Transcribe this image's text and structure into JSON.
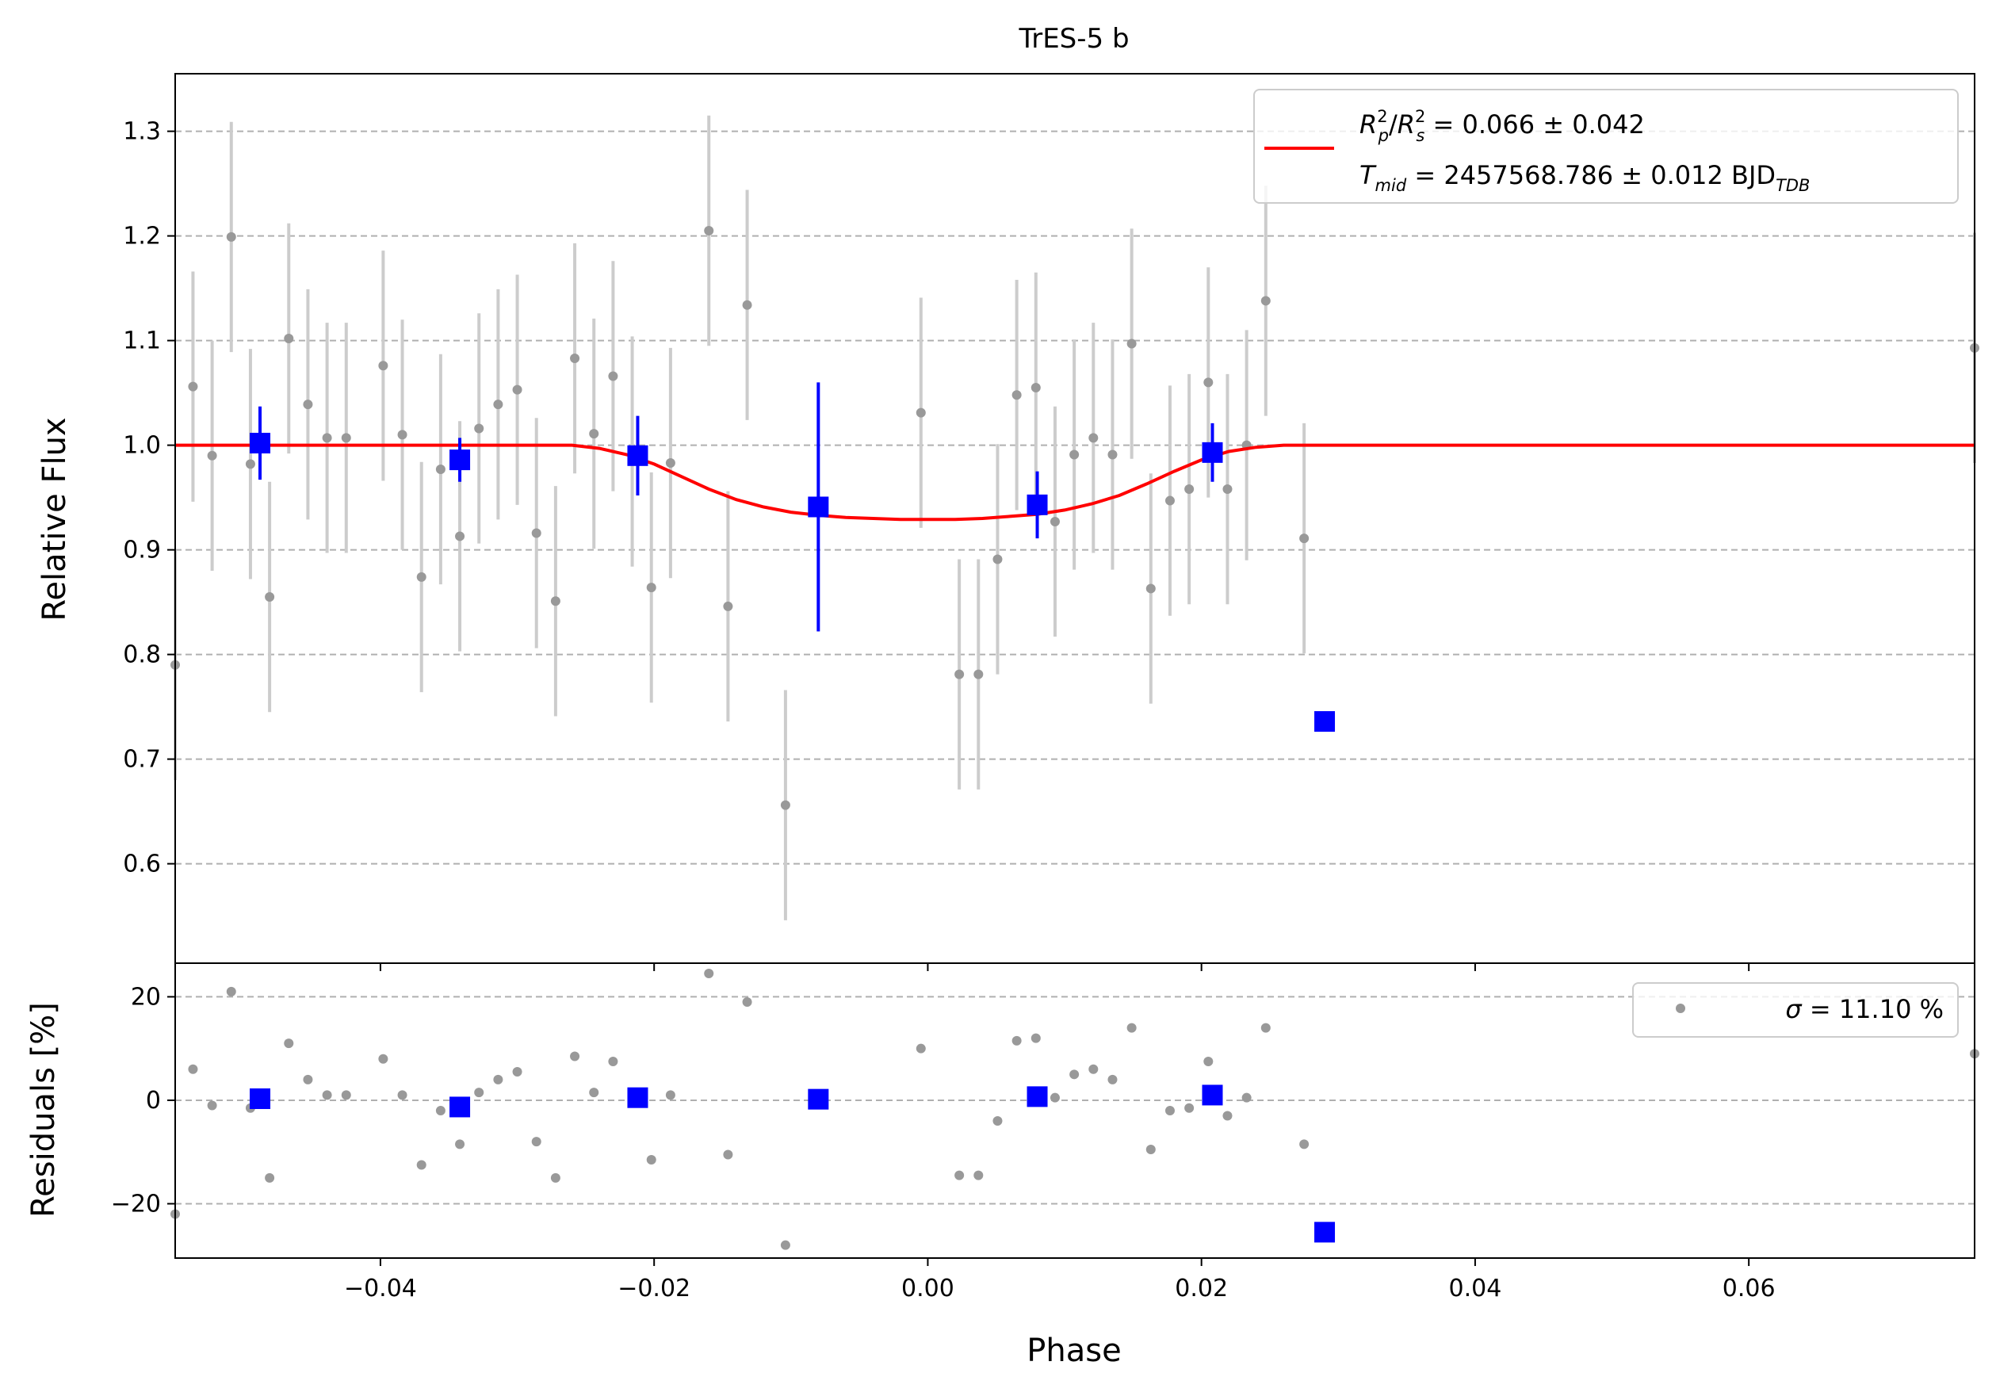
{
  "chart_data": [
    {
      "type": "scatter",
      "panel": "light-curve",
      "title": "TrES-5 b",
      "xlabel": "",
      "ylabel": "Relative Flux",
      "xlim": [
        -0.055,
        0.0765
      ],
      "ylim": [
        0.505,
        1.355
      ],
      "xticks": [
        -0.04,
        -0.02,
        0.0,
        0.02,
        0.04,
        0.06
      ],
      "xtick_labels": [
        "−0.04",
        "−0.02",
        "0.00",
        "0.02",
        "0.04",
        "0.06"
      ],
      "yticks": [
        0.6,
        0.7,
        0.8,
        0.9,
        1.0,
        1.1,
        1.2,
        1.3
      ],
      "ytick_labels": [
        "0.6",
        "0.7",
        "0.8",
        "0.9",
        "1.0",
        "1.1",
        "1.2",
        "1.3"
      ],
      "grid": "horizontal dashed",
      "legend_placement": "top-right",
      "legend": {
        "line1_lhs": "R²p/R²s",
        "line1_rhs": " = 0.066 ± 0.042",
        "line2_lhs": "Tmid",
        "line2_rhs": " = 2457568.786 ± 0.012 BJD",
        "line2_sub": "TDB",
        "color": "#ff0000"
      },
      "raw_points": {
        "color": "#999999",
        "errorbar_color": "#cccccc",
        "x": [
          -0.055,
          -0.0537,
          -0.0523,
          -0.0509,
          -0.0495,
          -0.0481,
          -0.0467,
          -0.0453,
          -0.0439,
          -0.0425,
          -0.0398,
          -0.0384,
          -0.037,
          -0.0356,
          -0.0342,
          -0.0328,
          -0.0314,
          -0.03,
          -0.0286,
          -0.0272,
          -0.0258,
          -0.0244,
          -0.023,
          -0.0216,
          -0.0202,
          -0.0188,
          -0.016,
          -0.0146,
          -0.0132,
          -0.0104,
          -0.0005,
          0.0023,
          0.0037,
          0.0051,
          0.0065,
          0.0079,
          0.0093,
          0.0107,
          0.0121,
          0.0135,
          0.0149,
          0.0163,
          0.0177,
          0.0191,
          0.0205,
          0.0219,
          0.0233,
          0.0247,
          0.0275,
          0.0765
        ],
        "y": [
          0.79,
          1.056,
          0.99,
          1.199,
          0.982,
          0.855,
          1.102,
          1.039,
          1.007,
          1.007,
          1.076,
          1.01,
          0.874,
          0.977,
          0.913,
          1.016,
          1.039,
          1.053,
          0.916,
          0.851,
          1.083,
          1.011,
          1.066,
          0.994,
          0.864,
          0.983,
          1.205,
          0.846,
          1.134,
          0.656,
          1.031,
          0.781,
          0.781,
          0.891,
          1.048,
          1.055,
          0.927,
          0.991,
          1.007,
          0.991,
          1.097,
          0.863,
          0.947,
          0.958,
          1.06,
          0.958,
          1.0,
          1.138,
          0.911,
          1.093
        ],
        "yerr": [
          0.11,
          0.11,
          0.11,
          0.11,
          0.11,
          0.11,
          0.11,
          0.11,
          0.11,
          0.11,
          0.11,
          0.11,
          0.11,
          0.11,
          0.11,
          0.11,
          0.11,
          0.11,
          0.11,
          0.11,
          0.11,
          0.11,
          0.11,
          0.11,
          0.11,
          0.11,
          0.11,
          0.11,
          0.11,
          0.11,
          0.11,
          0.11,
          0.11,
          0.11,
          0.11,
          0.11,
          0.11,
          0.11,
          0.11,
          0.11,
          0.11,
          0.11,
          0.11,
          0.11,
          0.11,
          0.11,
          0.11,
          0.11,
          0.11,
          0.11
        ]
      },
      "binned_points": {
        "color": "#0000ff",
        "x": [
          -0.0488,
          -0.0342,
          -0.0212,
          -0.008,
          0.008,
          0.0208,
          0.029
        ],
        "y": [
          1.002,
          0.986,
          0.99,
          0.941,
          0.943,
          0.993,
          0.736
        ],
        "yerr": [
          0.035,
          0.021,
          0.038,
          0.119,
          0.032,
          0.028,
          0.0
        ]
      },
      "model": {
        "color": "#ff0000",
        "x": [
          -0.055,
          -0.026,
          -0.024,
          -0.022,
          -0.02,
          -0.018,
          -0.016,
          -0.014,
          -0.012,
          -0.01,
          -0.008,
          -0.006,
          -0.004,
          -0.002,
          0.0,
          0.002,
          0.004,
          0.006,
          0.008,
          0.01,
          0.012,
          0.014,
          0.016,
          0.018,
          0.02,
          0.022,
          0.024,
          0.026,
          0.0765
        ],
        "y": [
          1.0,
          1.0,
          0.997,
          0.991,
          0.982,
          0.97,
          0.958,
          0.948,
          0.941,
          0.936,
          0.933,
          0.931,
          0.93,
          0.929,
          0.929,
          0.929,
          0.93,
          0.932,
          0.934,
          0.938,
          0.944,
          0.952,
          0.963,
          0.975,
          0.986,
          0.994,
          0.998,
          1.0,
          1.0
        ]
      }
    },
    {
      "type": "scatter",
      "panel": "residuals",
      "xlabel": "Phase",
      "ylabel": "Residuals [%]",
      "xlim": [
        -0.055,
        0.0765
      ],
      "ylim": [
        -30.5,
        26.5
      ],
      "xticks": [
        -0.04,
        -0.02,
        0.0,
        0.02,
        0.04,
        0.06
      ],
      "xtick_labels": [
        "−0.04",
        "−0.02",
        "0.00",
        "0.02",
        "0.04",
        "0.06"
      ],
      "yticks": [
        -20,
        0,
        20
      ],
      "ytick_labels": [
        "−20",
        "0",
        "20"
      ],
      "grid": "horizontal dashed",
      "legend_placement": "top-right",
      "legend": {
        "sigma_symbol": "σ",
        "sigma_value": " = 11.10 %",
        "marker_color": "#999999"
      },
      "raw_points": {
        "color": "#999999",
        "x": [
          -0.055,
          -0.0537,
          -0.0523,
          -0.0509,
          -0.0495,
          -0.0481,
          -0.0467,
          -0.0453,
          -0.0439,
          -0.0425,
          -0.0398,
          -0.0384,
          -0.037,
          -0.0356,
          -0.0342,
          -0.0328,
          -0.0314,
          -0.03,
          -0.0286,
          -0.0272,
          -0.0258,
          -0.0244,
          -0.023,
          -0.0216,
          -0.0202,
          -0.0188,
          -0.016,
          -0.0146,
          -0.0132,
          -0.0104,
          -0.0005,
          0.0023,
          0.0037,
          0.0051,
          0.0065,
          0.0079,
          0.0093,
          0.0107,
          0.0121,
          0.0135,
          0.0149,
          0.0163,
          0.0177,
          0.0191,
          0.0205,
          0.0219,
          0.0233,
          0.0247,
          0.0275,
          0.0765
        ],
        "y": [
          -22.0,
          6.0,
          -1.0,
          21.0,
          -1.5,
          -15.0,
          11.0,
          4.0,
          1.0,
          1.0,
          8.0,
          1.0,
          -12.5,
          -2.0,
          -8.5,
          1.5,
          4.0,
          5.5,
          -8.0,
          -15.0,
          8.5,
          1.5,
          7.5,
          0.5,
          -11.5,
          1.0,
          24.5,
          -10.5,
          19.0,
          -28.0,
          10.0,
          -14.5,
          -14.5,
          -4.0,
          11.5,
          12.0,
          0.5,
          5.0,
          6.0,
          4.0,
          14.0,
          -9.5,
          -2.0,
          -1.5,
          7.5,
          -3.0,
          0.5,
          14.0,
          -8.5,
          9.0
        ]
      },
      "binned_points": {
        "color": "#0000ff",
        "x": [
          -0.0488,
          -0.0342,
          -0.0212,
          -0.008,
          0.008,
          0.0208,
          0.029
        ],
        "y": [
          0.3,
          -1.3,
          0.5,
          0.2,
          0.7,
          1.0,
          -25.5
        ]
      }
    }
  ]
}
